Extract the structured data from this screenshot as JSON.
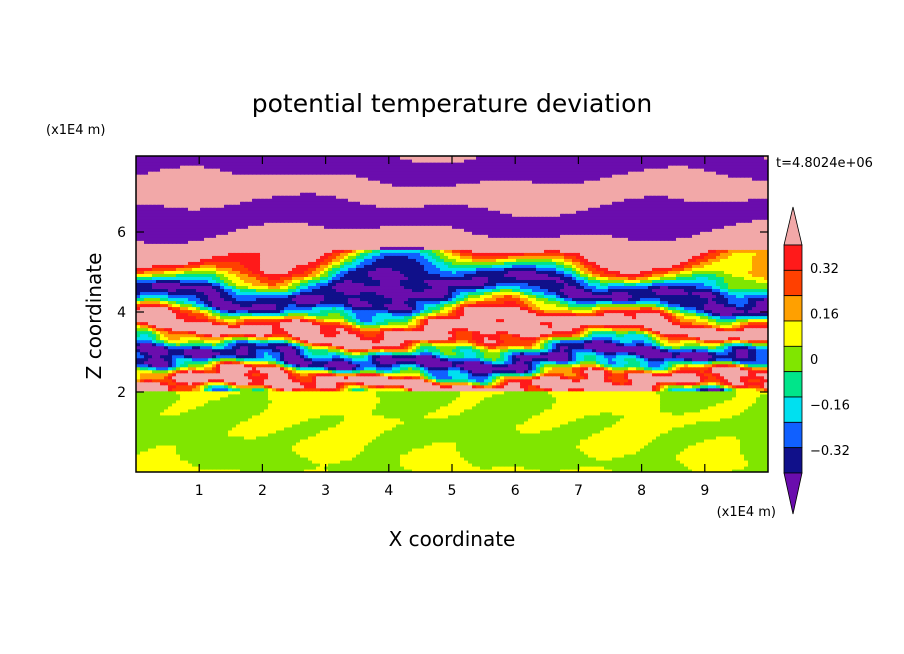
{
  "chart_data": {
    "type": "heatmap",
    "title": "potential temperature deviation",
    "xlabel": "X coordinate",
    "ylabel": "Z coordinate",
    "x_unit": "(x1E4 m)",
    "y_unit": "(x1E4 m)",
    "time_label": "t=4.8024e+06",
    "xlim": [
      0,
      10
    ],
    "ylim": [
      0,
      7.9
    ],
    "x_ticks": [
      1,
      2,
      3,
      4,
      5,
      6,
      7,
      8,
      9
    ],
    "x_tick_labels": [
      "1",
      "2",
      "3",
      "4",
      "5",
      "6",
      "7",
      "8",
      "9"
    ],
    "y_ticks": [
      2,
      4,
      6
    ],
    "y_tick_labels": [
      "2",
      "4",
      "6"
    ],
    "colorbar": {
      "levels": [
        -0.4,
        -0.32,
        -0.24,
        -0.16,
        -0.08,
        0,
        0.08,
        0.16,
        0.24,
        0.32,
        0.4
      ],
      "tick_values": [
        -0.32,
        -0.16,
        0,
        0.16,
        0.32
      ],
      "tick_labels": [
        "−0.32",
        "−0.16",
        "0",
        "0.16",
        "0.32"
      ],
      "colors": [
        "#6a0dad",
        "#10108a",
        "#1060ff",
        "#00e0f0",
        "#00e58a",
        "#80e600",
        "#ffff00",
        "#ffa000",
        "#ff4000",
        "#ff1a1a",
        "#f2a8a8"
      ],
      "extend": "both"
    },
    "layers": [
      {
        "z_range": [
          6.0,
          7.9
        ],
        "pattern": "alternating pink and purple bands",
        "min": -0.4,
        "max": 0.4
      },
      {
        "z_range": [
          2.0,
          6.0
        ],
        "pattern": "turbulent mixed bands",
        "min": -0.4,
        "max": 0.4
      },
      {
        "z_range": [
          0,
          2.0
        ],
        "pattern": "weak green/lime eddies",
        "min": -0.04,
        "max": 0.04
      }
    ]
  }
}
